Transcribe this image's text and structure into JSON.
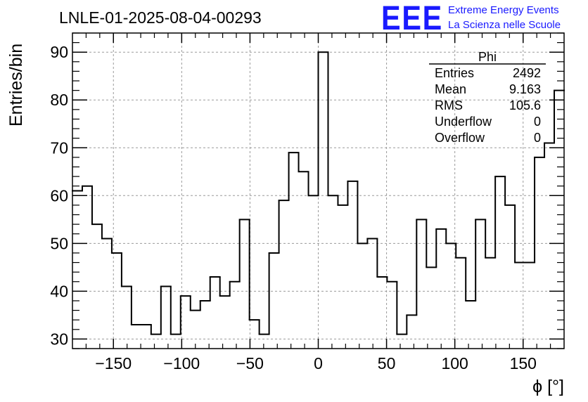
{
  "chart_data": {
    "type": "histogram",
    "title": "LNLE-01-2025-08-04-00293",
    "xlabel": "ϕ [°]",
    "ylabel": "Entries/bin",
    "xlim": [
      -180,
      180
    ],
    "ylim": [
      28,
      94
    ],
    "grid": true,
    "bin_width": 7.2,
    "x_ticks": [
      -150,
      -100,
      -50,
      0,
      50,
      100,
      150
    ],
    "x_tick_labels": [
      "−150",
      "−100",
      "−50",
      "0",
      "50",
      "100",
      "150"
    ],
    "y_ticks": [
      30,
      40,
      50,
      60,
      70,
      80,
      90
    ],
    "y_tick_labels": [
      "30",
      "40",
      "50",
      "60",
      "70",
      "80",
      "90"
    ],
    "series": [
      {
        "values": [
          61,
          62,
          54,
          51,
          48,
          41,
          33,
          33,
          31,
          41,
          31,
          39,
          36,
          38,
          43,
          39,
          42,
          55,
          34,
          31,
          48,
          59,
          69,
          65,
          60,
          90,
          60,
          58,
          63,
          50,
          51,
          43,
          42,
          31,
          35,
          55,
          45,
          53,
          50,
          47,
          38,
          55,
          47,
          64,
          58,
          46,
          46,
          68,
          71,
          82
        ]
      }
    ],
    "stats_box": {
      "title": "Phi",
      "rows": [
        {
          "label": "Entries",
          "value": "2492"
        },
        {
          "label": "Mean",
          "value": "9.163"
        },
        {
          "label": "RMS",
          "value": "105.6"
        },
        {
          "label": "Underflow",
          "value": "0"
        },
        {
          "label": "Overflow",
          "value": "0"
        }
      ]
    }
  },
  "logo": {
    "text": "EEE",
    "line1": "Extreme Energy Events",
    "line2": "La Scienza nelle Scuole",
    "color": "#1a1aff"
  }
}
